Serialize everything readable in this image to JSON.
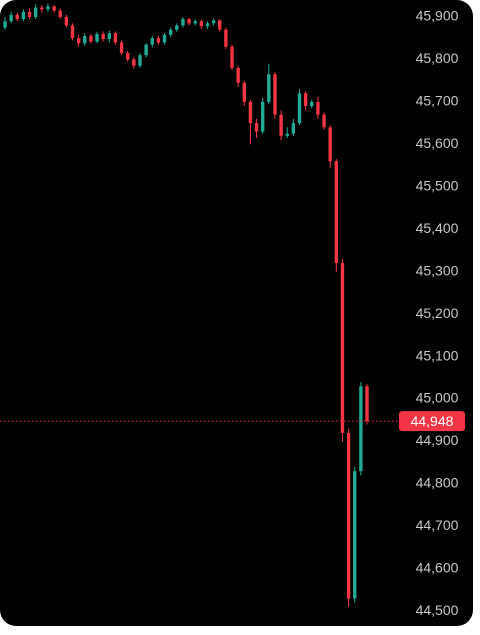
{
  "chart_data": {
    "type": "candlestick",
    "open": [
      45875,
      45890,
      45905,
      45895,
      45912,
      45900,
      45922,
      45918,
      45925,
      45915,
      45900,
      45880,
      45850,
      45838,
      45855,
      45842,
      45860,
      45848,
      45862,
      45840,
      45815,
      45800,
      45785,
      45810,
      45835,
      45850,
      45840,
      45858,
      45870,
      45880,
      45895,
      45885,
      45890,
      45878,
      45885,
      45892,
      45870,
      45830,
      45780,
      45745,
      45700,
      45650,
      45630,
      45700,
      45765,
      45670,
      45620,
      45625,
      45650,
      45720,
      45690,
      45700,
      45670,
      45640,
      45560,
      45320,
      44920,
      44530,
      44830,
      45030
    ],
    "high": [
      45900,
      45912,
      45910,
      45918,
      45920,
      45930,
      45928,
      45932,
      45928,
      45920,
      45905,
      45885,
      45858,
      45862,
      45860,
      45865,
      45866,
      45868,
      45866,
      45845,
      45820,
      45805,
      45815,
      45838,
      45856,
      45856,
      45862,
      45875,
      45885,
      45900,
      45898,
      45895,
      45894,
      45890,
      45896,
      45895,
      45875,
      45835,
      45785,
      45750,
      45705,
      45660,
      45710,
      45790,
      45770,
      45680,
      45640,
      45660,
      45730,
      45725,
      45705,
      45712,
      45675,
      45645,
      45565,
      45330,
      44930,
      44840,
      45040,
      45035
    ],
    "low": [
      45870,
      45885,
      45890,
      45890,
      45895,
      45895,
      45910,
      45912,
      45910,
      45895,
      45875,
      45845,
      45830,
      45832,
      45838,
      45838,
      45842,
      45840,
      45835,
      45810,
      45795,
      45778,
      45780,
      45805,
      45828,
      45835,
      45835,
      45852,
      45865,
      45875,
      45880,
      45880,
      45872,
      45872,
      45880,
      45865,
      45825,
      45775,
      45735,
      45690,
      45600,
      45615,
      45625,
      45695,
      45660,
      45610,
      45615,
      45620,
      45645,
      45680,
      45685,
      45660,
      45635,
      45545,
      45300,
      44900,
      44510,
      44520,
      44820,
      44940
    ],
    "close": [
      45890,
      45905,
      45895,
      45912,
      45900,
      45922,
      45918,
      45925,
      45915,
      45900,
      45880,
      45850,
      45838,
      45855,
      45842,
      45860,
      45848,
      45862,
      45840,
      45815,
      45800,
      45785,
      45810,
      45835,
      45850,
      45840,
      45858,
      45870,
      45880,
      45895,
      45885,
      45890,
      45878,
      45885,
      45892,
      45870,
      45830,
      45780,
      45745,
      45700,
      45650,
      45630,
      45700,
      45765,
      45670,
      45620,
      45625,
      45650,
      45720,
      45690,
      45700,
      45670,
      45640,
      45560,
      45320,
      44920,
      44530,
      44830,
      45030,
      44948
    ],
    "up_color": "#22ab94",
    "down_color": "#f23645",
    "ylim": [
      44470,
      45940
    ],
    "yticks": [
      {
        "value": 44500,
        "label": "44,500"
      },
      {
        "value": 44600,
        "label": "44,600"
      },
      {
        "value": 44700,
        "label": "44,700"
      },
      {
        "value": 44800,
        "label": "44,800"
      },
      {
        "value": 44900,
        "label": "44,900"
      },
      {
        "value": 45000,
        "label": "45,000"
      },
      {
        "value": 45100,
        "label": "45,100"
      },
      {
        "value": 45200,
        "label": "45,200"
      },
      {
        "value": 45300,
        "label": "45,300"
      },
      {
        "value": 45400,
        "label": "45,400"
      },
      {
        "value": 45500,
        "label": "45,500"
      },
      {
        "value": 45600,
        "label": "45,600"
      },
      {
        "value": 45700,
        "label": "45,700"
      },
      {
        "value": 45800,
        "label": "45,800"
      },
      {
        "value": 45900,
        "label": "45,900"
      }
    ],
    "price_line": {
      "value": 44948,
      "label": "44,948",
      "color": "#f23645"
    }
  }
}
